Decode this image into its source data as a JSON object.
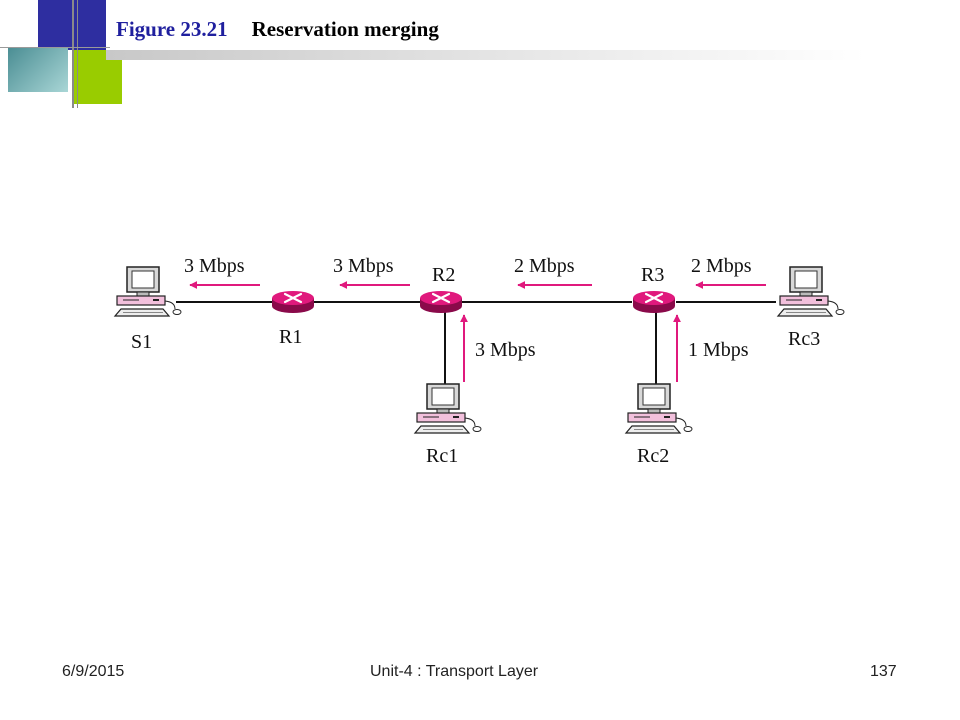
{
  "title": {
    "figure_number": "Figure 23.21",
    "caption": "Reservation merging"
  },
  "diagram": {
    "nodes": {
      "s1": "S1",
      "r1": "R1",
      "r2": "R2",
      "r3": "R3",
      "rc1": "Rc1",
      "rc2": "Rc2",
      "rc3": "Rc3"
    },
    "rates": {
      "r1_to_s1": "3 Mbps",
      "r2_to_r1": "3 Mbps",
      "r3_to_r2": "2 Mbps",
      "rc3_to_r3": "2 Mbps",
      "rc1_to_r2": "3 Mbps",
      "rc2_to_r3": "1 Mbps"
    },
    "colors": {
      "arrow": "#e0197d",
      "router": "#e0197d"
    }
  },
  "footer": {
    "date": "6/9/2015",
    "center": "Unit-4 : Transport Layer",
    "page": "137"
  }
}
